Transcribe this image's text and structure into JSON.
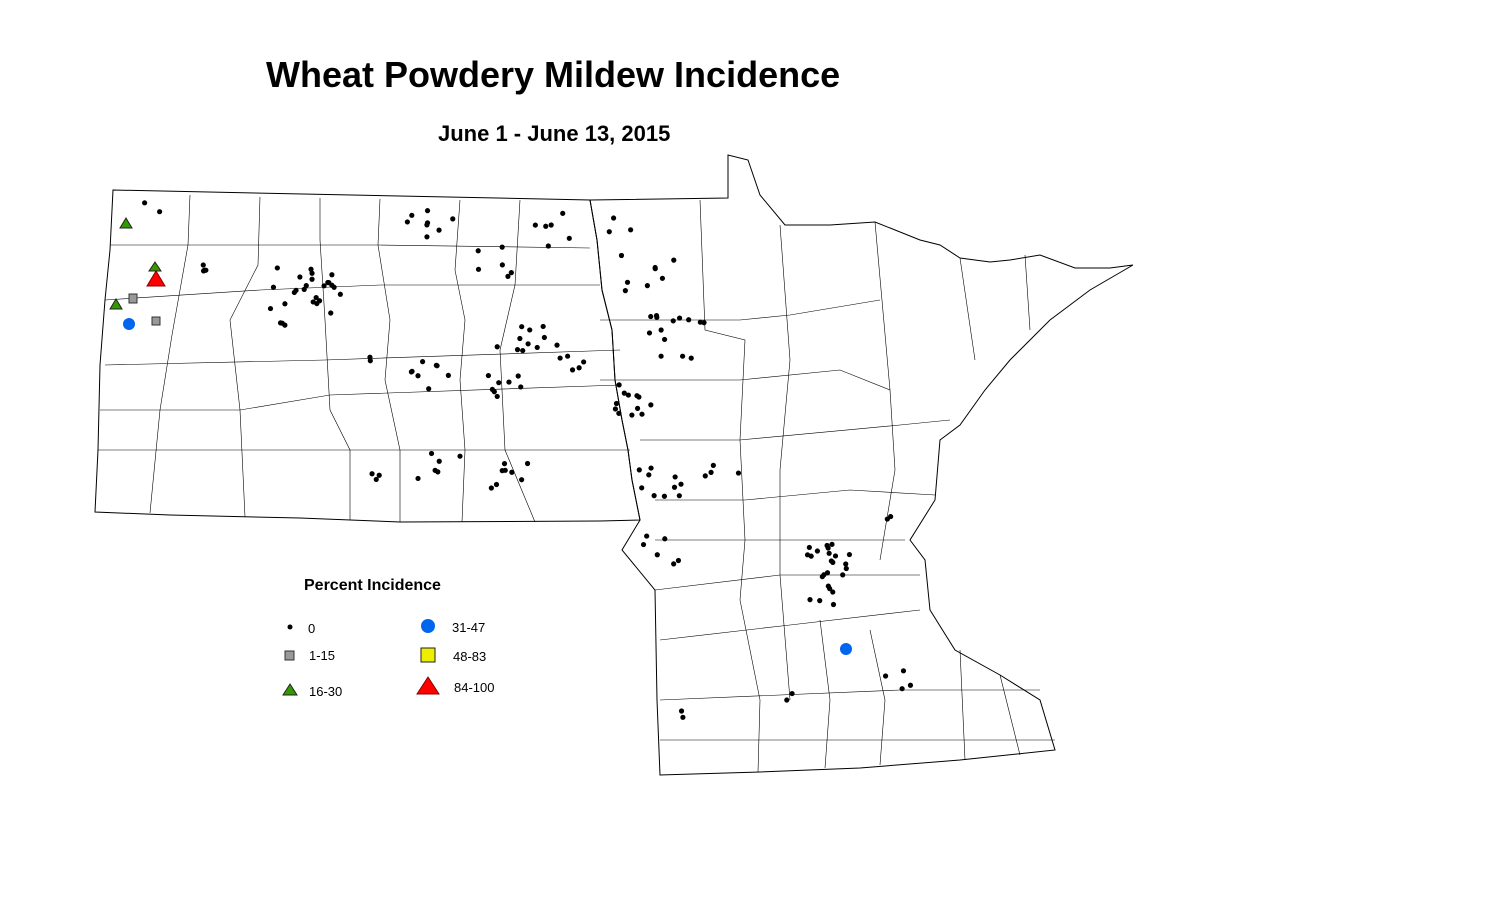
{
  "title": "Wheat Powdery Mildew Incidence",
  "subtitle": "June 1 - June 13, 2015",
  "legend": {
    "title": "Percent Incidence",
    "items": [
      {
        "label": "0",
        "symbol": "dot",
        "color": "#000000"
      },
      {
        "label": "1-15",
        "symbol": "square",
        "color": "#999999"
      },
      {
        "label": "16-30",
        "symbol": "triangle",
        "color": "#339900"
      },
      {
        "label": "31-47",
        "symbol": "circle",
        "color": "#0066ee"
      },
      {
        "label": "48-83",
        "symbol": "square",
        "color": "#eeee00"
      },
      {
        "label": "84-100",
        "symbol": "triangle",
        "color": "#ff0000"
      }
    ]
  },
  "regions": [
    "North Dakota",
    "Minnesota"
  ]
}
